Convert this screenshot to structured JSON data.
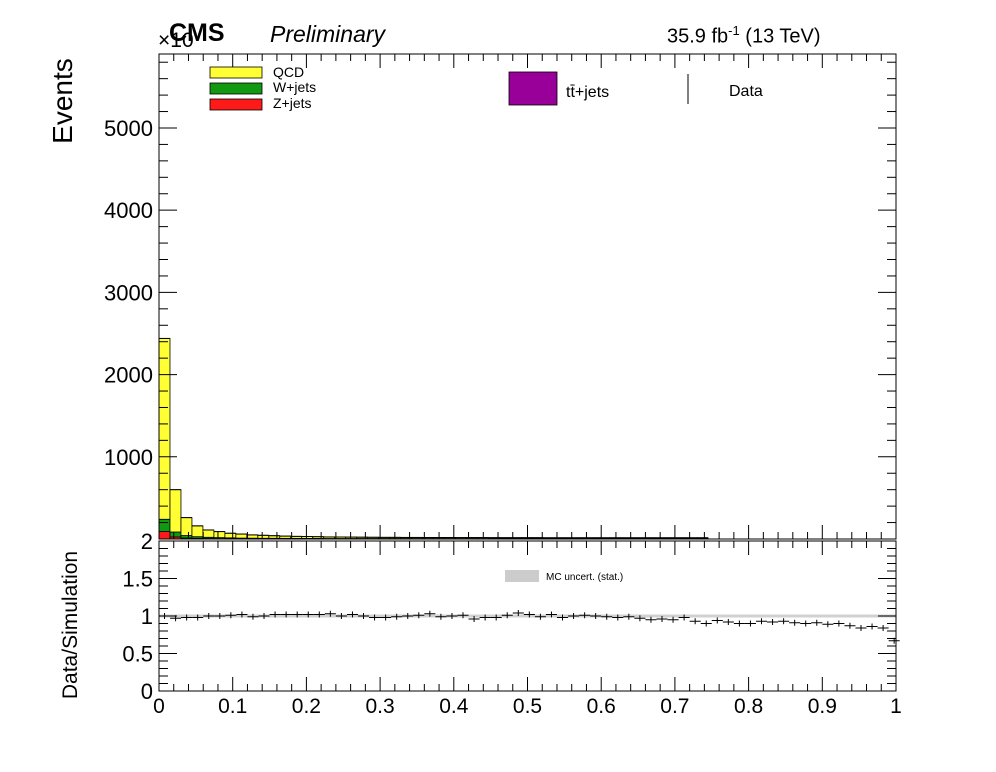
{
  "header": {
    "experiment": "CMS",
    "status": "Preliminary",
    "luminosity": "35.9 fb",
    "lumi_exponent": "-1",
    "energy": " (13 TeV)",
    "axis_multiplier": "×10"
  },
  "colors": {
    "qcd": "#ffff33",
    "wjets": "#119911",
    "zjets": "#ff1a1a",
    "ttbar": "#990099",
    "data": "#000000",
    "mc_uncert": "#9a9a9a"
  },
  "legend": {
    "qcd": "QCD",
    "wjets": "W+jets",
    "zjets": "Z+jets",
    "ttbar": "tt̄+jets",
    "data": "Data",
    "mc_uncert": "MC uncert. (stat.)"
  },
  "chart_data": [
    {
      "type": "area",
      "ylabel": "Events",
      "ylim": [
        0,
        5900
      ],
      "xlim": [
        0,
        1
      ],
      "bin_width": 0.0149,
      "ytick_labels": [
        "1000",
        "2000",
        "3000",
        "4000",
        "5000"
      ],
      "ytick_values": [
        1000,
        2000,
        3000,
        4000,
        5000
      ],
      "series": [
        {
          "name": "Z+jets",
          "color_key": "zjets",
          "values": [
            90,
            25,
            12,
            8,
            6,
            5,
            4,
            3,
            3,
            3,
            3,
            3,
            3,
            2,
            2,
            2,
            2,
            2,
            2,
            2,
            2,
            2,
            2,
            2,
            2,
            2,
            2,
            2,
            2,
            2,
            2,
            2,
            2,
            2,
            2,
            2,
            2,
            2,
            2,
            2,
            2,
            2,
            2,
            2,
            2,
            2,
            2,
            2,
            2,
            2
          ]
        },
        {
          "name": "W+jets",
          "color_key": "wjets",
          "values": [
            150,
            60,
            30,
            20,
            15,
            12,
            10,
            8,
            7,
            6,
            6,
            5,
            5,
            5,
            5,
            4,
            4,
            4,
            4,
            4,
            4,
            4,
            4,
            4,
            4,
            4,
            4,
            4,
            4,
            4,
            4,
            4,
            4,
            4,
            4,
            4,
            4,
            4,
            4,
            4,
            4,
            4,
            4,
            4,
            4,
            4,
            4,
            4,
            4,
            4
          ]
        },
        {
          "name": "QCD",
          "color_key": "qcd",
          "values": [
            2200,
            515,
            218,
            132,
            89,
            73,
            56,
            49,
            40,
            36,
            31,
            27,
            24,
            23,
            21,
            19,
            18,
            17,
            16,
            15,
            14,
            14,
            13,
            13,
            12,
            12,
            12,
            11,
            11,
            11,
            10,
            10,
            10,
            10,
            10,
            9,
            9,
            9,
            9,
            9,
            9,
            9,
            9,
            9,
            9,
            9,
            9,
            9,
            9,
            9
          ]
        }
      ]
    },
    {
      "type": "scatter",
      "xlabel": "",
      "ylabel": "Data/Simulation",
      "xlim": [
        0,
        1
      ],
      "ylim": [
        0,
        2
      ],
      "xtick_labels": [
        "0",
        "0.1",
        "0.2",
        "0.3",
        "0.4",
        "0.5",
        "0.6",
        "0.7",
        "0.8",
        "0.9",
        "1"
      ],
      "xtick_values": [
        0,
        0.1,
        0.2,
        0.3,
        0.4,
        0.5,
        0.6,
        0.7,
        0.8,
        0.9,
        1
      ],
      "ytick_labels": [
        "0",
        "0.5",
        "1",
        "1.5",
        "2"
      ],
      "ytick_values": [
        0,
        0.5,
        1,
        1.5,
        2
      ],
      "x": [
        0.0075,
        0.0225,
        0.0375,
        0.0525,
        0.0675,
        0.0825,
        0.0975,
        0.1125,
        0.1275,
        0.1425,
        0.1575,
        0.1725,
        0.1875,
        0.2025,
        0.2175,
        0.2325,
        0.2475,
        0.2625,
        0.2775,
        0.2925,
        0.3075,
        0.3225,
        0.3375,
        0.3525,
        0.3675,
        0.3825,
        0.3975,
        0.4125,
        0.4275,
        0.4425,
        0.4575,
        0.4725,
        0.4875,
        0.5025,
        0.5175,
        0.5325,
        0.5475,
        0.5625,
        0.5775,
        0.5925,
        0.6075,
        0.6225,
        0.6375,
        0.6525,
        0.6675,
        0.6825,
        0.6975,
        0.7125,
        0.7275,
        0.7425,
        0.7575,
        0.7725,
        0.7875,
        0.8025,
        0.8175,
        0.8325,
        0.8475,
        0.8625,
        0.8775,
        0.8925,
        0.9075,
        0.9225,
        0.9375,
        0.9525,
        0.9675,
        0.9825,
        0.9975
      ],
      "y": [
        1.0,
        0.97,
        0.98,
        0.98,
        1.0,
        1.0,
        1.01,
        1.02,
        0.99,
        1.0,
        1.02,
        1.02,
        1.02,
        1.02,
        1.02,
        1.03,
        1.0,
        1.02,
        1.0,
        0.98,
        0.98,
        0.99,
        1.0,
        1.01,
        1.03,
        0.99,
        1.0,
        1.01,
        0.96,
        0.98,
        0.98,
        1.01,
        1.04,
        1.02,
        0.99,
        1.02,
        0.98,
        1.0,
        1.01,
        1.0,
        0.99,
        0.98,
        0.99,
        0.97,
        0.95,
        0.96,
        0.95,
        0.98,
        0.93,
        0.9,
        0.94,
        0.92,
        0.9,
        0.9,
        0.93,
        0.92,
        0.93,
        0.91,
        0.9,
        0.91,
        0.89,
        0.9,
        0.87,
        0.84,
        0.86,
        0.84,
        0.67
      ],
      "mc_uncert_band": [
        0.98,
        1.02
      ]
    }
  ]
}
